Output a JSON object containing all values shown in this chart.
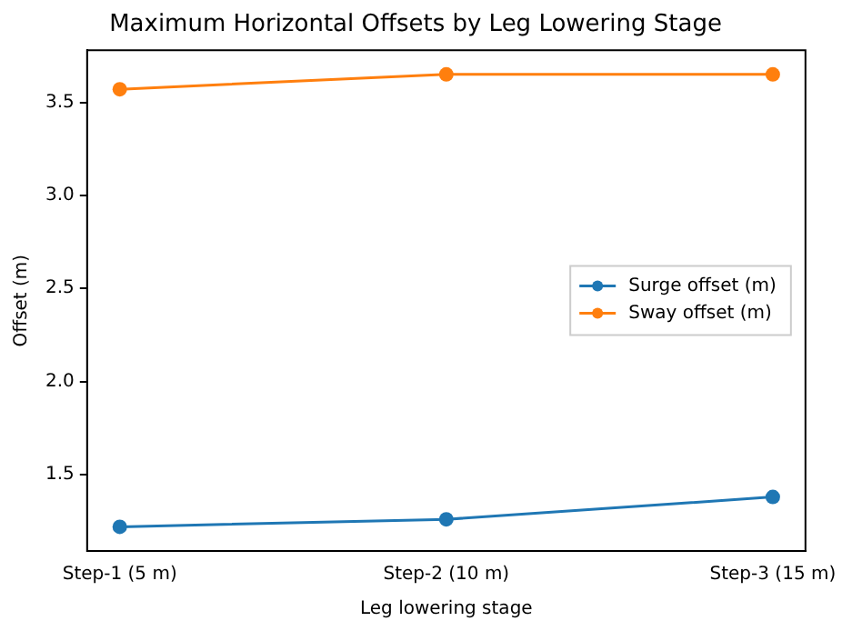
{
  "chart_data": {
    "type": "line",
    "title": "Maximum Horizontal Offsets by Leg Lowering Stage",
    "xlabel": "Leg lowering stage",
    "ylabel": "Offset (m)",
    "categories": [
      "Step-1 (5 m)",
      "Step-2 (10 m)",
      "Step-3 (15 m)"
    ],
    "series": [
      {
        "name": "Surge offset (m)",
        "color": "#1f77b4",
        "values": [
          1.22,
          1.26,
          1.38
        ]
      },
      {
        "name": "Sway offset (m)",
        "color": "#ff7f0e",
        "values": [
          3.57,
          3.65,
          3.65
        ]
      }
    ],
    "ylim": [
      1.09,
      3.78
    ],
    "yticks": [
      1.5,
      {
        "value": 2,
        "label": "2.0"
      },
      2.5,
      {
        "value": 3,
        "label": "3.0"
      },
      3.5
    ],
    "grid": false,
    "legend": "right",
    "marker": "circle",
    "line_style": "solid"
  }
}
